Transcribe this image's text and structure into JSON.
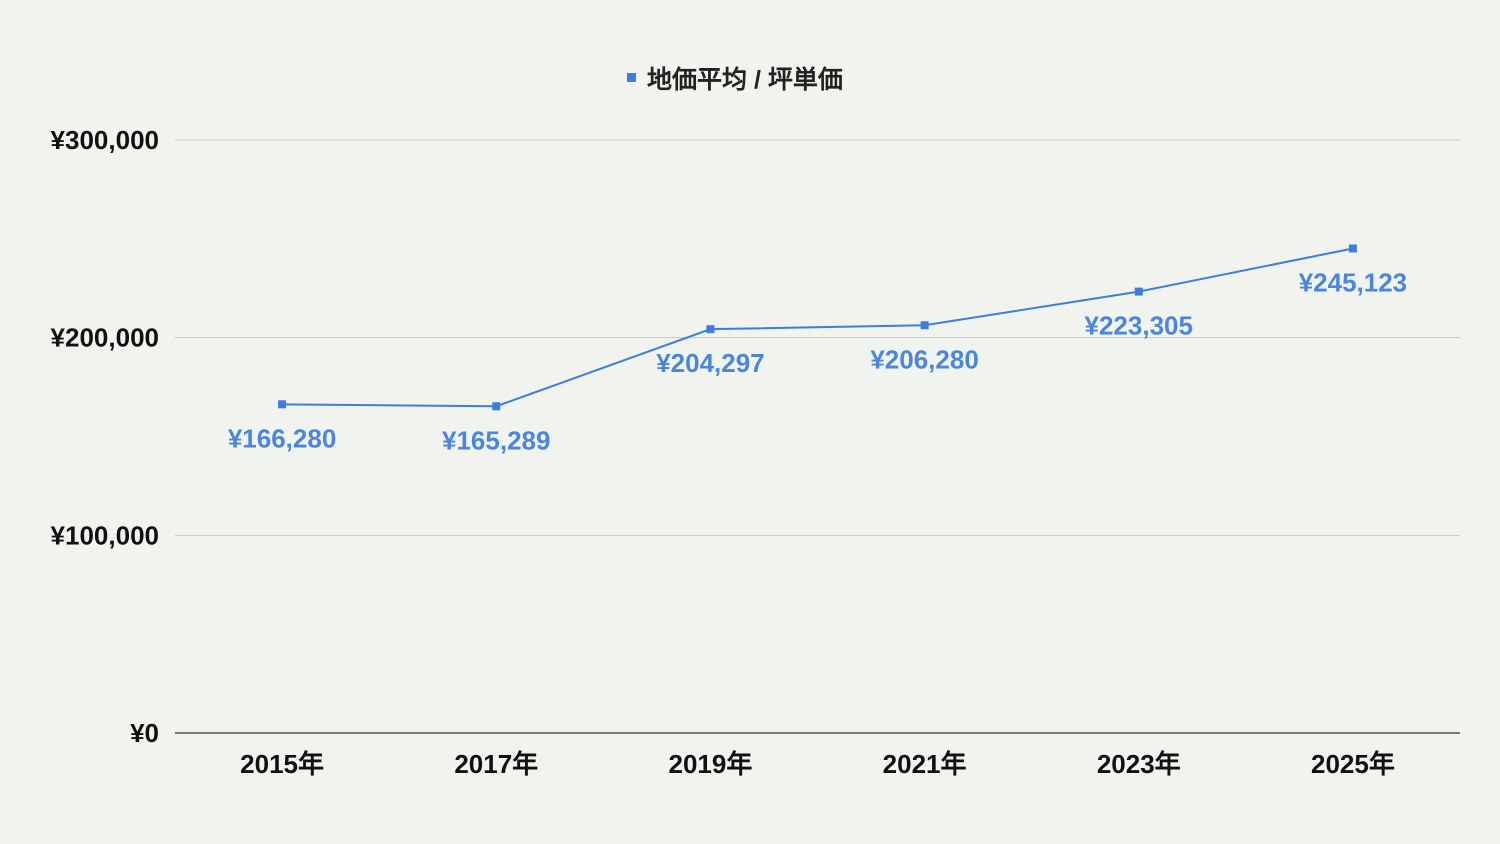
{
  "chart_data": {
    "type": "line",
    "title": "",
    "xlabel": "",
    "ylabel": "",
    "categories": [
      "2015年",
      "2017年",
      "2019年",
      "2021年",
      "2023年",
      "2025年"
    ],
    "series": [
      {
        "name": "地価平均 / 坪単価",
        "values": [
          166280,
          165289,
          204297,
          206280,
          223305,
          245123
        ],
        "labels": [
          "¥166,280",
          "¥165,289",
          "¥204,297",
          "¥206,280",
          "¥223,305",
          "¥245,123"
        ]
      }
    ],
    "ylim": [
      0,
      300000
    ],
    "yticks": [
      {
        "value": 0,
        "label": "¥0"
      },
      {
        "value": 100000,
        "label": "¥100,000"
      },
      {
        "value": 200000,
        "label": "¥200,000"
      },
      {
        "value": 300000,
        "label": "¥300,000"
      }
    ],
    "grid": true,
    "legend_position": "top-center",
    "colors": {
      "series": "#3c7de0",
      "data_label": "#4a86e0",
      "background": "#f1f3ee",
      "grid": "#c8cac6"
    }
  }
}
